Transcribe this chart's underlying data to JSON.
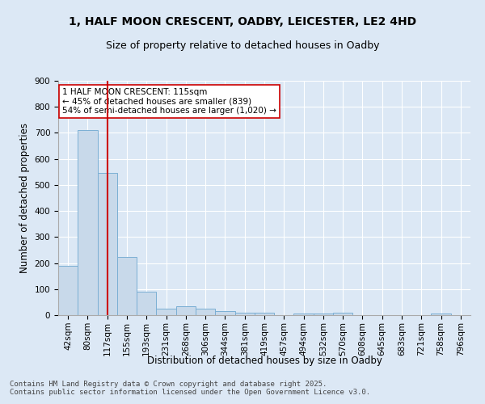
{
  "title1": "1, HALF MOON CRESCENT, OADBY, LEICESTER, LE2 4HD",
  "title2": "Size of property relative to detached houses in Oadby",
  "xlabel": "Distribution of detached houses by size in Oadby",
  "ylabel": "Number of detached properties",
  "categories": [
    "42sqm",
    "80sqm",
    "117sqm",
    "155sqm",
    "193sqm",
    "231sqm",
    "268sqm",
    "306sqm",
    "344sqm",
    "381sqm",
    "419sqm",
    "457sqm",
    "494sqm",
    "532sqm",
    "570sqm",
    "608sqm",
    "645sqm",
    "683sqm",
    "721sqm",
    "758sqm",
    "796sqm"
  ],
  "values": [
    190,
    710,
    545,
    225,
    90,
    25,
    35,
    25,
    15,
    10,
    10,
    0,
    5,
    5,
    10,
    0,
    0,
    0,
    0,
    5,
    0
  ],
  "bar_color": "#c8d9ea",
  "bar_edge_color": "#7bafd4",
  "vline_x": 2.0,
  "vline_color": "#cc0000",
  "annotation_text": "1 HALF MOON CRESCENT: 115sqm\n← 45% of detached houses are smaller (839)\n54% of semi-detached houses are larger (1,020) →",
  "annotation_box_color": "#ffffff",
  "annotation_box_edge": "#cc0000",
  "ylim": [
    0,
    900
  ],
  "yticks": [
    0,
    100,
    200,
    300,
    400,
    500,
    600,
    700,
    800,
    900
  ],
  "bg_color": "#dce8f5",
  "plot_bg": "#dce8f5",
  "footer": "Contains HM Land Registry data © Crown copyright and database right 2025.\nContains public sector information licensed under the Open Government Licence v3.0.",
  "title_fontsize": 10,
  "subtitle_fontsize": 9,
  "tick_fontsize": 7.5,
  "label_fontsize": 8.5,
  "footer_fontsize": 6.5
}
